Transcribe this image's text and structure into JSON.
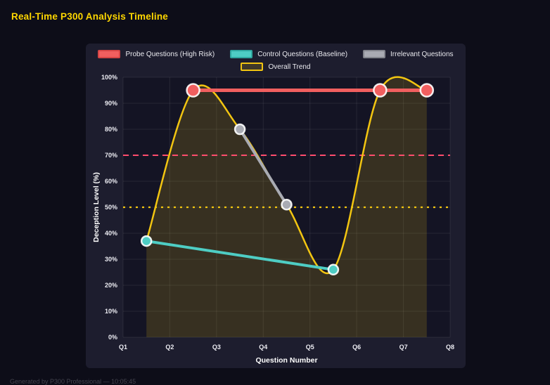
{
  "page": {
    "title": "Real-Time P300 Analysis Timeline",
    "footer": "Generated by P300 Professional — 10:05:45"
  },
  "theme": {
    "background": "#0d0d18",
    "panel_background": "#1d1d2e",
    "title_color": "#ffd700",
    "grid_color": "rgba(255,255,255,0.08)",
    "tick_color": "#ececf2"
  },
  "chart_data": {
    "type": "line",
    "title": "Real-Time P300 Analysis Timeline",
    "xlabel": "Question Number",
    "ylabel": "Deception Level (%)",
    "xlim": [
      1,
      8
    ],
    "ylim": [
      0,
      100
    ],
    "grid": true,
    "legend_position": "top",
    "legend_rows": [
      [
        0,
        1,
        2
      ],
      [
        3
      ]
    ],
    "x_ticks": [
      "Q1",
      "Q2",
      "Q3",
      "Q4",
      "Q5",
      "Q6",
      "Q7",
      "Q8"
    ],
    "x_tick_values": [
      1,
      2,
      3,
      4,
      5,
      6,
      7,
      8
    ],
    "y_ticks": [
      "0%",
      "10%",
      "20%",
      "30%",
      "40%",
      "50%",
      "60%",
      "70%",
      "80%",
      "90%",
      "100%"
    ],
    "y_tick_values": [
      0,
      10,
      20,
      30,
      40,
      50,
      60,
      70,
      80,
      90,
      100
    ],
    "series": [
      {
        "name": "Probe Questions (High Risk)",
        "x": [
          2.5,
          6.5,
          7.5
        ],
        "y": [
          95,
          95,
          95
        ],
        "color": "#f15f5f",
        "border_color": "#d64545",
        "line_width": 5,
        "point_radius": 9,
        "smooth": false,
        "fill": false
      },
      {
        "name": "Control Questions (Baseline)",
        "x": [
          1.5,
          5.5
        ],
        "y": [
          37,
          26
        ],
        "color": "#4ecdc4",
        "border_color": "#2fa79f",
        "line_width": 4,
        "point_radius": 7,
        "smooth": false,
        "fill": false
      },
      {
        "name": "Irrelevant Questions",
        "x": [
          3.5,
          4.5
        ],
        "y": [
          80,
          51
        ],
        "color": "#a9abb3",
        "border_color": "#83858d",
        "line_width": 4,
        "point_radius": 7,
        "smooth": false,
        "fill": false
      },
      {
        "name": "Overall Trend",
        "x": [
          1.5,
          2.5,
          3.5,
          4.5,
          5.5,
          6.5,
          7.5
        ],
        "y": [
          37,
          95,
          80,
          51,
          26,
          95,
          95
        ],
        "color": "#f2c511",
        "border_color": "#f2c511",
        "line_width": 2.5,
        "point_radius": 0,
        "smooth": true,
        "fill": true,
        "fill_color": "rgba(242,197,17,0.16)"
      }
    ],
    "thresholds": [
      {
        "value": 70,
        "color": "#ff4d6d",
        "dash": "8 6",
        "width": 2
      },
      {
        "value": 50,
        "color": "#f2c511",
        "dash": "3 6",
        "width": 2.2
      }
    ]
  }
}
